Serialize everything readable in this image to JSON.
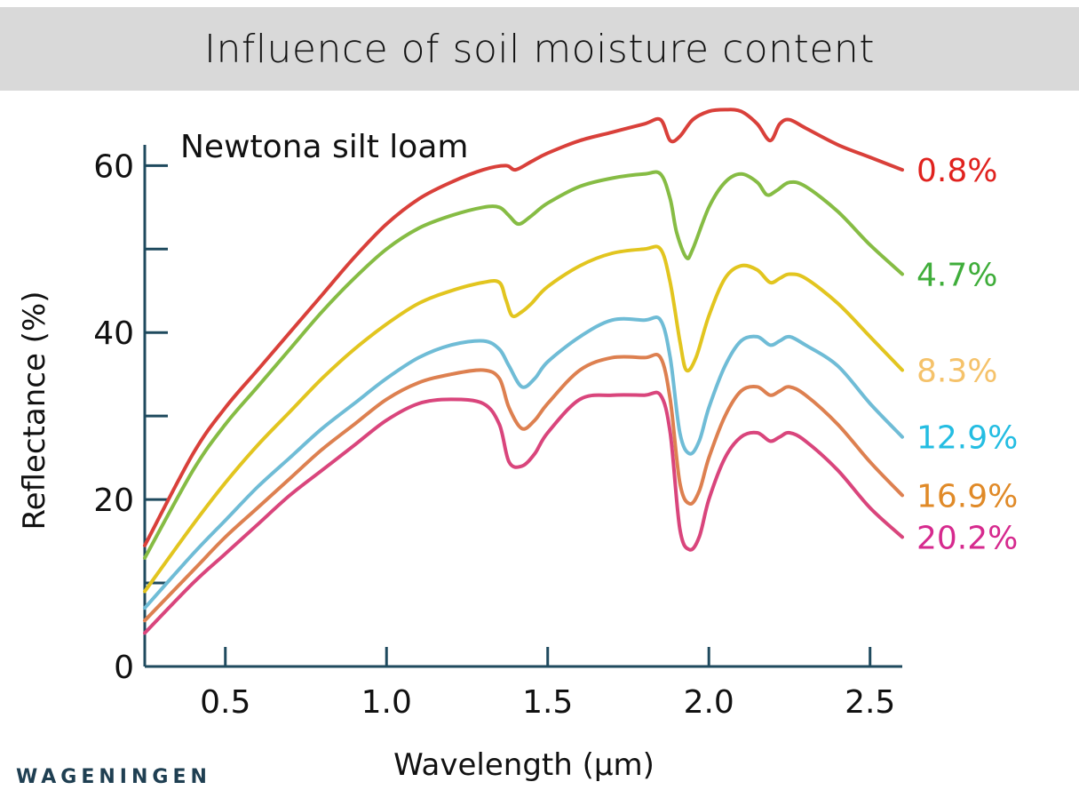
{
  "header": {
    "title": "Influence of soil moisture content"
  },
  "brand": {
    "text": "WAGENINGEN"
  },
  "chart_data": {
    "type": "line",
    "title": "Influence of soil moisture content",
    "subtitle": "Newtona silt loam",
    "xlabel": "Wavelength (µm)",
    "ylabel": "Reflectance (%)",
    "xlim": [
      0.25,
      2.6
    ],
    "ylim": [
      0,
      66
    ],
    "x_ticks": [
      {
        "label": "0.5",
        "value": 0.5
      },
      {
        "label": "1.0",
        "value": 1.0
      },
      {
        "label": "1.5",
        "value": 1.5
      },
      {
        "label": "2.0",
        "value": 2.0
      },
      {
        "label": "2.5",
        "value": 2.5
      }
    ],
    "y_ticks": [
      {
        "label": "0",
        "value": 0
      },
      {
        "label": "",
        "value": 10
      },
      {
        "label": "20",
        "value": 20
      },
      {
        "label": "",
        "value": 30
      },
      {
        "label": "40",
        "value": 40
      },
      {
        "label": "",
        "value": 50
      },
      {
        "label": "60",
        "value": 60
      }
    ],
    "grid": false,
    "legend": "inline-right",
    "series": [
      {
        "name": "0.8%",
        "color": "#d9403a",
        "label_color": "#e0221e",
        "x": [
          0.25,
          0.4,
          0.5,
          0.6,
          0.7,
          0.8,
          0.9,
          1.0,
          1.1,
          1.2,
          1.3,
          1.37,
          1.4,
          1.45,
          1.5,
          1.6,
          1.7,
          1.8,
          1.85,
          1.88,
          1.91,
          1.95,
          2.0,
          2.05,
          2.1,
          2.15,
          2.19,
          2.22,
          2.25,
          2.3,
          2.4,
          2.5,
          2.6
        ],
        "y": [
          14.5,
          25.5,
          31,
          35.5,
          40,
          44.5,
          49,
          53,
          56,
          58,
          59.5,
          60,
          59.5,
          60.5,
          61.5,
          63,
          64,
          65,
          65.5,
          63,
          63.5,
          65.5,
          66.5,
          66.7,
          66.5,
          65,
          63,
          65,
          65.5,
          64.5,
          62.5,
          61,
          59.5
        ]
      },
      {
        "name": "4.7%",
        "color": "#86bc44",
        "label_color": "#3fad3a",
        "x": [
          0.25,
          0.4,
          0.5,
          0.6,
          0.7,
          0.8,
          0.9,
          1.0,
          1.1,
          1.2,
          1.3,
          1.35,
          1.38,
          1.41,
          1.45,
          1.5,
          1.6,
          1.7,
          1.8,
          1.85,
          1.88,
          1.9,
          1.93,
          1.95,
          2.0,
          2.05,
          2.1,
          2.15,
          2.18,
          2.21,
          2.25,
          2.3,
          2.4,
          2.5,
          2.6
        ],
        "y": [
          13,
          23.5,
          29,
          33.5,
          38,
          42.5,
          46.5,
          50,
          52.5,
          54,
          55,
          55,
          54,
          53,
          54,
          55.5,
          57.5,
          58.5,
          59,
          59,
          56,
          52,
          49,
          50,
          55,
          58,
          59,
          58,
          56.5,
          57,
          58,
          57.5,
          54.5,
          50.5,
          47
        ]
      },
      {
        "name": "8.3%",
        "color": "#e2c51f",
        "label_color": "#f5c26a",
        "x": [
          0.25,
          0.4,
          0.5,
          0.6,
          0.7,
          0.8,
          0.9,
          1.0,
          1.1,
          1.2,
          1.3,
          1.35,
          1.37,
          1.39,
          1.42,
          1.45,
          1.5,
          1.6,
          1.7,
          1.8,
          1.85,
          1.88,
          1.91,
          1.93,
          1.96,
          2.0,
          2.05,
          2.1,
          2.15,
          2.19,
          2.22,
          2.25,
          2.3,
          2.4,
          2.5,
          2.6
        ],
        "y": [
          9,
          17,
          22,
          26.5,
          30.5,
          34.5,
          38,
          41,
          43.5,
          45,
          46,
          46,
          44,
          42,
          42.5,
          43.5,
          45.5,
          48,
          49.5,
          50,
          50,
          46,
          39,
          35.5,
          37,
          42,
          46.5,
          48,
          47.5,
          46,
          46.5,
          47,
          46.5,
          43.5,
          39.5,
          35.5
        ]
      },
      {
        "name": "12.9%",
        "color": "#6fbcd6",
        "label_color": "#24bde2",
        "x": [
          0.25,
          0.4,
          0.5,
          0.6,
          0.7,
          0.8,
          0.9,
          1.0,
          1.1,
          1.2,
          1.3,
          1.35,
          1.38,
          1.42,
          1.46,
          1.5,
          1.6,
          1.7,
          1.8,
          1.85,
          1.88,
          1.91,
          1.94,
          1.97,
          2.0,
          2.05,
          2.1,
          2.15,
          2.19,
          2.22,
          2.25,
          2.3,
          2.4,
          2.5,
          2.6
        ],
        "y": [
          7,
          13.5,
          17.5,
          21.5,
          25,
          28.5,
          31.5,
          34.5,
          37,
          38.5,
          39,
          38,
          36,
          33.5,
          34.5,
          36.5,
          39.5,
          41.5,
          41.5,
          41.5,
          37,
          28,
          25.5,
          27,
          31,
          36,
          39,
          39.5,
          38.5,
          39,
          39.5,
          38.5,
          36,
          31.5,
          27.5
        ]
      },
      {
        "name": "16.9%",
        "color": "#dd8050",
        "label_color": "#e08a28",
        "x": [
          0.25,
          0.4,
          0.5,
          0.6,
          0.7,
          0.8,
          0.9,
          1.0,
          1.1,
          1.2,
          1.3,
          1.35,
          1.38,
          1.42,
          1.46,
          1.5,
          1.6,
          1.7,
          1.8,
          1.85,
          1.88,
          1.91,
          1.94,
          1.97,
          2.0,
          2.05,
          2.1,
          2.15,
          2.19,
          2.22,
          2.25,
          2.3,
          2.4,
          2.5,
          2.6
        ],
        "y": [
          5.5,
          11.5,
          15.5,
          19,
          22.5,
          26,
          29,
          32,
          34,
          35,
          35.5,
          34.5,
          31,
          28.5,
          29.5,
          31.5,
          35.5,
          37,
          37,
          37,
          32,
          22,
          19.5,
          21,
          25,
          30,
          33,
          33.5,
          32.5,
          33,
          33.5,
          32.5,
          29,
          24.5,
          20.5
        ]
      },
      {
        "name": "20.2%",
        "color": "#d9457c",
        "label_color": "#d62a8e",
        "x": [
          0.25,
          0.4,
          0.5,
          0.6,
          0.7,
          0.8,
          0.9,
          1.0,
          1.1,
          1.2,
          1.3,
          1.35,
          1.38,
          1.42,
          1.46,
          1.5,
          1.6,
          1.7,
          1.8,
          1.85,
          1.88,
          1.91,
          1.94,
          1.97,
          2.0,
          2.05,
          2.1,
          2.15,
          2.19,
          2.22,
          2.25,
          2.3,
          2.4,
          2.5,
          2.6
        ],
        "y": [
          4,
          10,
          13.5,
          17,
          20.5,
          23.5,
          26.5,
          29.5,
          31.5,
          32,
          31.5,
          29,
          24.5,
          24,
          25.5,
          28,
          32,
          32.5,
          32.5,
          32.5,
          28,
          16.5,
          14,
          15.5,
          20,
          25,
          27.5,
          28,
          27,
          27.5,
          28,
          27,
          23.5,
          19,
          15.5
        ]
      }
    ]
  }
}
